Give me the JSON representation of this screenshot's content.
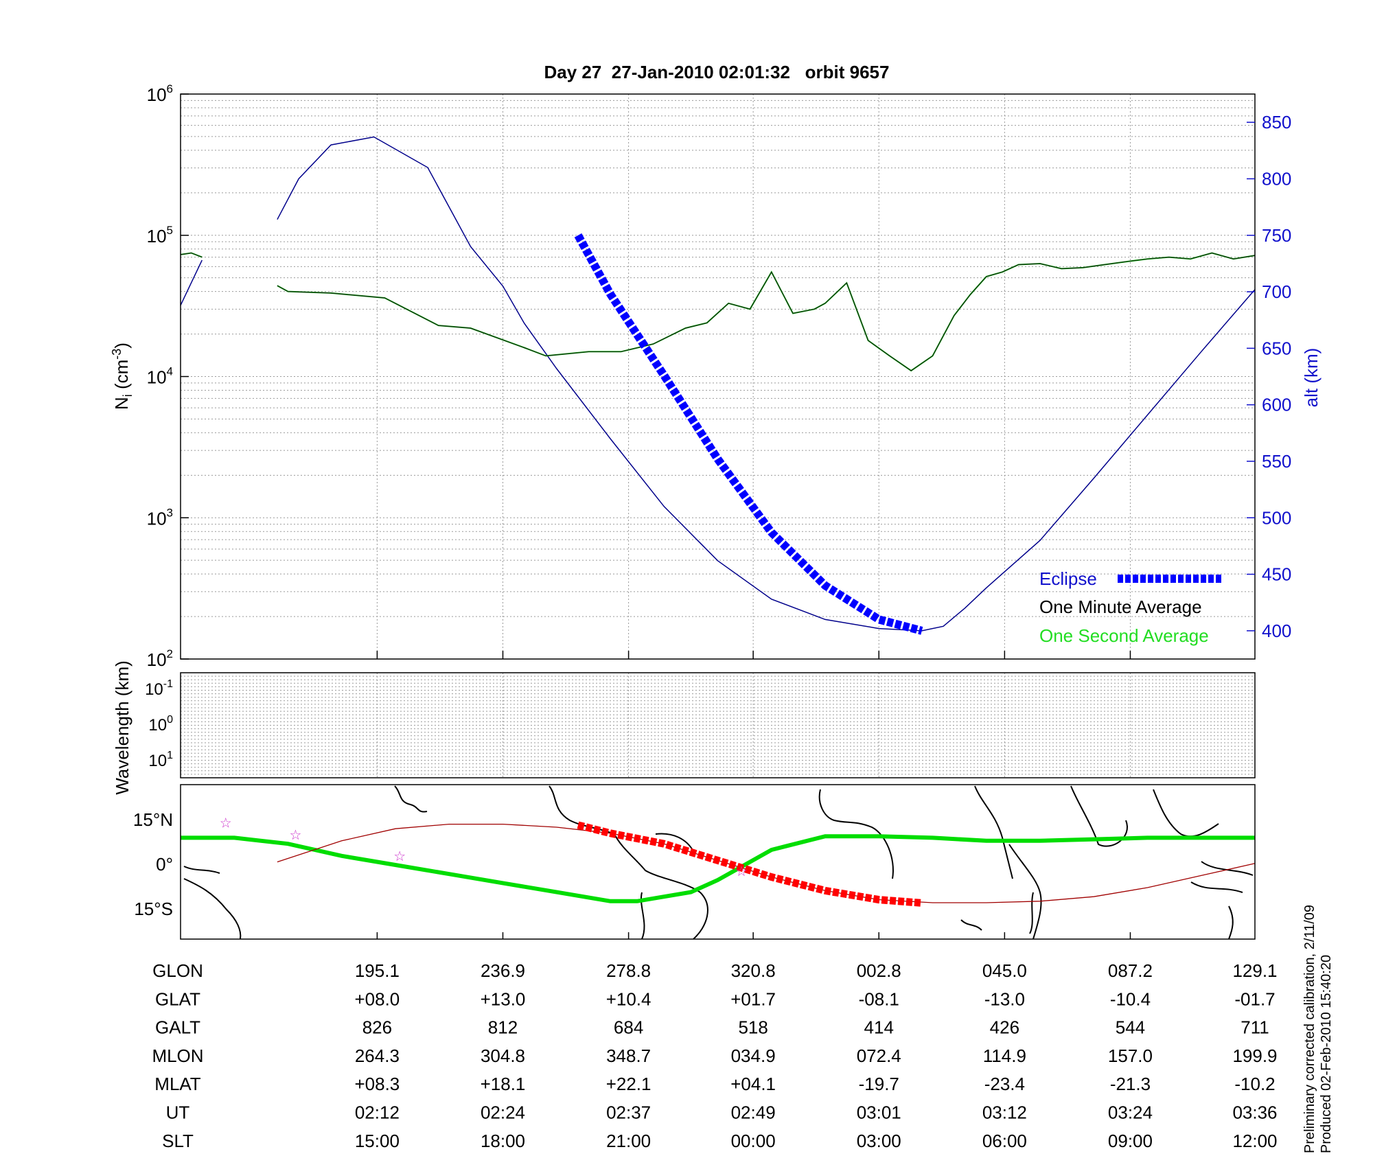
{
  "figure": {
    "title": "Day 27  27-Jan-2010 02:01:32   orbit 9657",
    "footer_line1": "Preliminary corrected calibration, 2/11/09",
    "footer_line2": "Produced 02-Feb-2010 15:40:20"
  },
  "colors": {
    "altitude": "#00008B",
    "eclipse": "#0000FF",
    "minute_avg": "#1a1a1a",
    "second_avg": "#00DD00",
    "ground_track": "#00DD00",
    "satellite_track": "#A00000",
    "satellite_eclipse": "#FF0000",
    "grid": "#999999",
    "stars": "#CC33CC"
  },
  "chart_data": [
    {
      "type": "line",
      "panel": "density",
      "title": "Day 27  27-Jan-2010 02:01:32   orbit 9657",
      "ylabel": "N_i (cm^-3)",
      "y2label": "alt (km)",
      "yscale": "log",
      "ylim": [
        100,
        1000000
      ],
      "y2lim": [
        375,
        875
      ],
      "xlim": [
        0,
        100
      ],
      "yticks": [
        "10^2",
        "10^3",
        "10^4",
        "10^5",
        "10^6"
      ],
      "y2ticks": [
        400,
        450,
        500,
        550,
        600,
        650,
        700,
        750,
        800,
        850
      ],
      "grid": true,
      "legend_position": "bottom-right",
      "legend": [
        "Eclipse",
        "One Minute Average",
        "One Second Average"
      ],
      "series": [
        {
          "name": "One Minute Average",
          "axis": "left",
          "x": [
            0,
            1,
            2,
            9,
            10,
            14,
            19,
            24,
            27,
            32,
            34,
            38,
            41,
            44,
            47,
            49,
            51,
            53,
            55,
            57,
            59,
            60,
            62,
            64,
            66,
            68,
            70,
            72,
            73.5,
            75,
            76.5,
            78,
            80,
            82,
            84,
            86,
            88,
            90,
            92,
            94,
            96,
            98,
            100
          ],
          "y": [
            73000,
            75000,
            70000,
            44000,
            40000,
            39000,
            36000,
            23000,
            22000,
            16000,
            14000,
            15000,
            15000,
            17000,
            22000,
            24000,
            33000,
            30000,
            55000,
            28000,
            30000,
            33000,
            46000,
            18000,
            14000,
            11000,
            14000,
            27000,
            38000,
            51000,
            55000,
            62000,
            63000,
            58000,
            59000,
            62000,
            65000,
            68000,
            70000,
            68000,
            75000,
            68000,
            72000
          ]
        },
        {
          "name": "Altitude",
          "axis": "right",
          "x": [
            0,
            1,
            2,
            9,
            11,
            14,
            18,
            23,
            27,
            30,
            32,
            35,
            40,
            45,
            50,
            55,
            60,
            65,
            69,
            71,
            73,
            75,
            80,
            85,
            90,
            95,
            100
          ],
          "y": [
            688,
            708,
            728,
            764,
            800,
            830,
            837,
            810,
            740,
            705,
            672,
            632,
            570,
            510,
            462,
            428,
            410,
            402,
            400,
            404,
            420,
            438,
            480,
            535,
            591,
            647,
            702
          ]
        },
        {
          "name": "Eclipse",
          "axis": "right",
          "x": [
            37,
            40,
            45,
            50,
            55,
            60,
            65,
            69
          ],
          "y": [
            750,
            698,
            626,
            552,
            487,
            440,
            410,
            400
          ]
        }
      ]
    },
    {
      "type": "line",
      "panel": "wavelength",
      "ylabel": "Wavelength (km)",
      "yticks": [
        "10^-1",
        "10^0",
        "10^1"
      ],
      "grid": true
    },
    {
      "type": "line",
      "panel": "map",
      "yticks": [
        "15°N",
        "0°",
        "15°S"
      ],
      "series": [
        {
          "name": "ground track",
          "x": [
            0,
            5,
            10,
            15,
            20,
            25,
            30,
            35,
            40,
            42.5,
            47.5,
            50,
            55,
            60,
            65,
            70,
            75,
            80,
            85,
            90,
            95,
            100
          ],
          "y": [
            9,
            9,
            7,
            3,
            0,
            -3,
            -6,
            -9,
            -12,
            -12,
            -9,
            -5,
            5,
            9.5,
            9.5,
            9,
            8,
            8,
            8.5,
            9,
            9,
            9
          ]
        },
        {
          "name": "satellite track",
          "x": [
            9,
            15,
            20,
            25,
            30,
            35,
            40,
            45,
            50,
            55,
            60,
            65,
            70,
            75,
            80,
            85,
            90,
            95,
            100
          ],
          "y": [
            1,
            8,
            12,
            13.5,
            13.5,
            12.5,
            10.5,
            7,
            1.5,
            -4,
            -8.5,
            -11.5,
            -12.5,
            -12.5,
            -12,
            -10.5,
            -7.5,
            -3.5,
            0.5
          ]
        }
      ],
      "markers": {
        "name": "stars",
        "x": [
          4.2,
          10.7,
          20.4,
          52.2
        ],
        "y": [
          14,
          10,
          3,
          -2
        ]
      }
    }
  ],
  "table": {
    "rows": [
      {
        "label": "GLON",
        "values": [
          "195.1",
          "236.9",
          "278.8",
          "320.8",
          "002.8",
          "045.0",
          "087.2",
          "129.1"
        ]
      },
      {
        "label": "GLAT",
        "values": [
          "+08.0",
          "+13.0",
          "+10.4",
          "+01.7",
          "-08.1",
          "-13.0",
          "-10.4",
          "-01.7"
        ]
      },
      {
        "label": "GALT",
        "values": [
          "826",
          "812",
          "684",
          "518",
          "414",
          "426",
          "544",
          "711"
        ]
      },
      {
        "label": "MLON",
        "values": [
          "264.3",
          "304.8",
          "348.7",
          "034.9",
          "072.4",
          "114.9",
          "157.0",
          "199.9"
        ]
      },
      {
        "label": "MLAT",
        "values": [
          "+08.3",
          "+18.1",
          "+22.1",
          "+04.1",
          "-19.7",
          "-23.4",
          "-21.3",
          "-10.2"
        ]
      },
      {
        "label": "UT",
        "values": [
          "02:12",
          "02:24",
          "02:37",
          "02:49",
          "03:01",
          "03:12",
          "03:24",
          "03:36"
        ]
      },
      {
        "label": "SLT",
        "values": [
          "15:00",
          "18:00",
          "21:00",
          "00:00",
          "03:00",
          "06:00",
          "09:00",
          "12:00"
        ]
      }
    ]
  }
}
